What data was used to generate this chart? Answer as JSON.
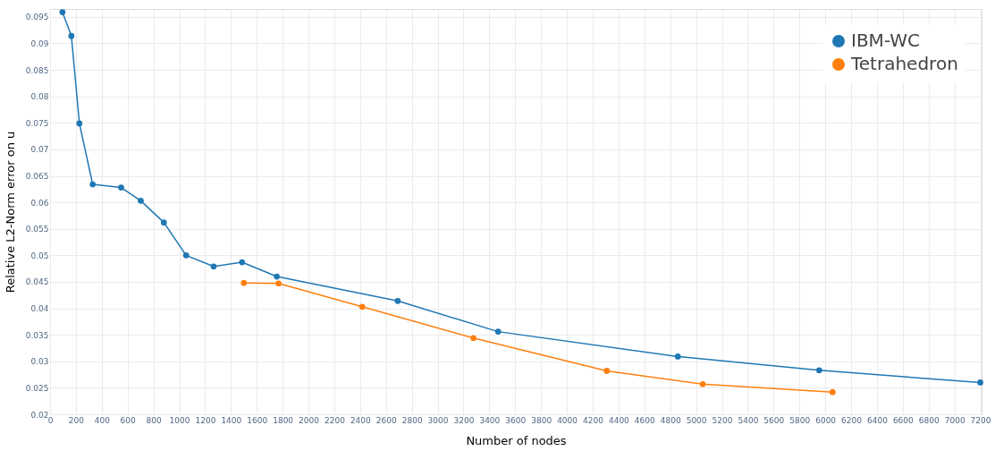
{
  "chart_data": {
    "type": "line",
    "xlabel": "Number of nodes",
    "ylabel": "Relative L2-Norm error on u",
    "xlim": [
      0,
      7210
    ],
    "xticks": [
      0,
      200,
      400,
      600,
      800,
      1000,
      1200,
      1400,
      1600,
      1800,
      2000,
      2200,
      2400,
      2600,
      2800,
      3000,
      3200,
      3400,
      3600,
      3800,
      4000,
      4200,
      4400,
      4600,
      4800,
      5000,
      5200,
      5400,
      5600,
      5800,
      6000,
      6200,
      6400,
      6600,
      6800,
      7000,
      7200
    ],
    "ylim": [
      0.02,
      0.0965
    ],
    "yticks": [
      0.02,
      0.025,
      0.03,
      0.035,
      0.04,
      0.045,
      0.05,
      0.055,
      0.06,
      0.065,
      0.07,
      0.075,
      0.08,
      0.085,
      0.09,
      0.095
    ],
    "grid": true,
    "legend": "top right",
    "marker": "circle",
    "line_style": "solid",
    "series": [
      {
        "name": "IBM-WC",
        "color": "#1f77b4",
        "x": [
          96,
          165,
          227,
          330,
          550,
          702,
          881,
          1053,
          1266,
          1486,
          1755,
          2691,
          3468,
          4859,
          5953,
          7200
        ],
        "values": [
          0.0959,
          0.0914,
          0.0749,
          0.0634,
          0.0628,
          0.0603,
          0.0562,
          0.05,
          0.0479,
          0.0487,
          0.046,
          0.0414,
          0.0356,
          0.0309,
          0.0283,
          0.026
        ]
      },
      {
        "name": "Tetrahedron",
        "color": "#ff7f0e",
        "x": [
          1500,
          1769,
          2416,
          3277,
          4309,
          5052,
          6057
        ],
        "values": [
          0.0448,
          0.0447,
          0.0403,
          0.0344,
          0.0282,
          0.0257,
          0.0242
        ]
      }
    ]
  }
}
